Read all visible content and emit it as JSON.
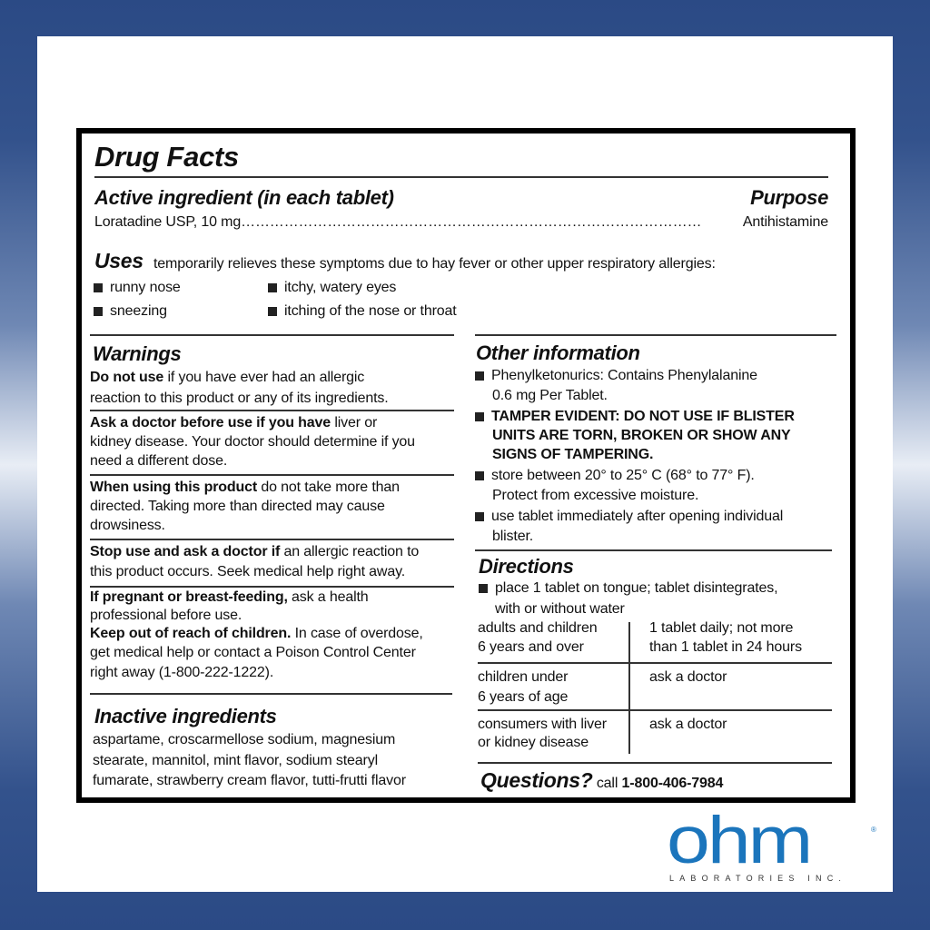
{
  "header": {
    "title": "Drug Facts",
    "active_heading": "Active ingredient (in each tablet)",
    "purpose_heading": "Purpose",
    "ingredient": "Loratadine USP, 10 mg",
    "leader": "……………………………………………………………………………………",
    "purpose": "Antihistamine"
  },
  "uses": {
    "heading": "Uses",
    "intro": "temporarily relieves these symptoms due to hay fever or other upper respiratory allergies:",
    "items": [
      "runny nose",
      "itchy, watery eyes",
      "sneezing",
      "itching of the nose or throat"
    ]
  },
  "warnings": {
    "heading": "Warnings",
    "blocks": [
      {
        "lead": "Do not use",
        "lines": [
          " if you have ever had an allergic",
          "reaction to this product or any of its ingredients."
        ]
      },
      {
        "lead": "Ask a doctor before use if you have",
        "lines": [
          " liver or",
          "kidney disease. Your doctor should determine if you",
          "need a different dose."
        ]
      },
      {
        "lead": "When using this product",
        "lines": [
          " do not take more than",
          "directed. Taking more than directed may cause",
          "drowsiness."
        ]
      },
      {
        "lead": "Stop use and ask a doctor if",
        "lines": [
          " an allergic reaction to",
          "this product occurs. Seek medical help right away."
        ]
      },
      {
        "lead": "If pregnant or breast-feeding,",
        "lines": [
          " ask a health",
          "professional before use."
        ]
      },
      {
        "lead": "Keep out of reach of children.",
        "lines": [
          " In case of overdose,",
          "get medical help or contact a Poison Control Center",
          "right away (1-800-222-1222)."
        ]
      }
    ]
  },
  "inactive": {
    "heading": "Inactive ingredients",
    "lines": [
      "aspartame, croscarmellose sodium, magnesium",
      "stearate, mannitol, mint flavor, sodium stearyl",
      "fumarate, strawberry cream flavor, tutti-frutti flavor"
    ]
  },
  "other_info": {
    "heading": "Other information",
    "items": [
      {
        "lines": [
          "Phenylketonurics: Contains Phenylalanine",
          "0.6 mg Per Tablet."
        ]
      },
      {
        "lines": [
          "TAMPER EVIDENT: DO NOT USE IF BLISTER",
          "UNITS ARE TORN, BROKEN OR SHOW ANY",
          "SIGNS OF TAMPERING."
        ]
      },
      {
        "lines": [
          "store between 20° to 25° C (68° to 77° F).",
          "Protect from excessive moisture."
        ]
      },
      {
        "lines": [
          "use tablet immediately after opening individual",
          "blister."
        ]
      }
    ]
  },
  "directions": {
    "heading": "Directions",
    "bullet": [
      "place 1 tablet on tongue; tablet disintegrates,",
      "with or without water"
    ],
    "rows": [
      {
        "who": [
          "adults and children",
          "6 years and over"
        ],
        "dose": [
          "1 tablet daily; not more",
          "than 1 tablet  in 24 hours"
        ]
      },
      {
        "who": [
          "children under",
          "6 years of age"
        ],
        "dose": [
          "ask a doctor"
        ]
      },
      {
        "who": [
          "consumers with liver",
          "or kidney disease"
        ],
        "dose": [
          "ask a doctor"
        ]
      }
    ]
  },
  "questions": {
    "heading": "Questions?",
    "call": "call",
    "phone": "1-800-406-7984"
  },
  "logo": {
    "brand": "ohm",
    "registered": "®",
    "subtitle": "LABORATORIES INC.",
    "color": "#1b75bc"
  }
}
